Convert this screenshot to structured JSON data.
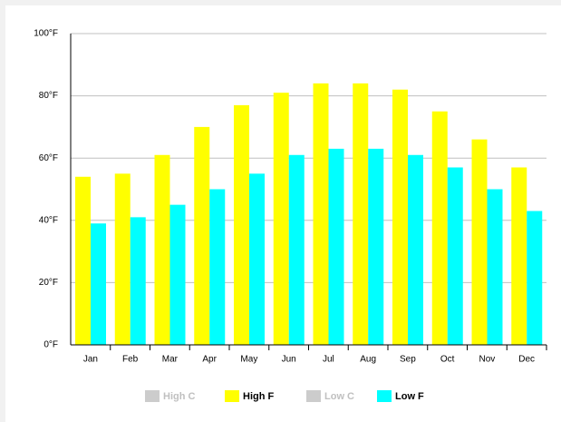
{
  "chart_data": {
    "type": "bar",
    "categories": [
      "Jan",
      "Feb",
      "Mar",
      "Apr",
      "May",
      "Jun",
      "Jul",
      "Aug",
      "Sep",
      "Oct",
      "Nov",
      "Dec"
    ],
    "series": [
      {
        "name": "High C",
        "color": "#cccccc",
        "visible": false
      },
      {
        "name": "High F",
        "color": "#ffff00",
        "visible": true,
        "values": [
          54,
          55,
          61,
          70,
          77,
          81,
          84,
          84,
          82,
          75,
          66,
          57
        ]
      },
      {
        "name": "Low C",
        "color": "#cccccc",
        "visible": false
      },
      {
        "name": "Low F",
        "color": "#00ffff",
        "visible": true,
        "values": [
          39,
          41,
          45,
          50,
          55,
          61,
          63,
          63,
          61,
          57,
          50,
          43
        ]
      }
    ],
    "ylim": [
      0,
      100
    ],
    "yticks": [
      {
        "value": 0,
        "label": "0°F"
      },
      {
        "value": 20,
        "label": "20°F"
      },
      {
        "value": 40,
        "label": "40°F"
      },
      {
        "value": 60,
        "label": "60°F"
      },
      {
        "value": 80,
        "label": "80°F"
      },
      {
        "value": 100,
        "label": "100°F"
      }
    ],
    "grid": true
  }
}
